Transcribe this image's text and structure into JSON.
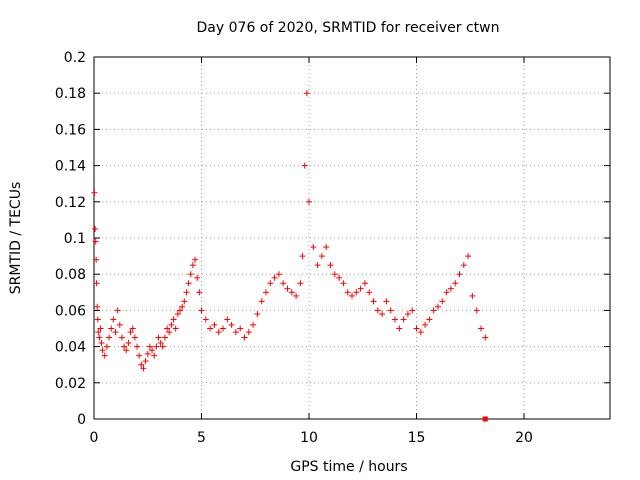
{
  "chart_data": {
    "type": "scatter",
    "title": "Day 076 of 2020, SRMTID for receiver ctwn",
    "xlabel": "GPS time / hours",
    "ylabel": "SRMTID / TECUs",
    "xlim": [
      0,
      24
    ],
    "ylim": [
      0,
      0.2
    ],
    "grid": true,
    "xticks": [
      0,
      5,
      10,
      15,
      20
    ],
    "xtick_labels": [
      "0",
      "5",
      "10",
      "15",
      "20"
    ],
    "yticks": [
      0,
      0.02,
      0.04,
      0.06,
      0.08,
      0.1,
      0.12,
      0.14,
      0.16,
      0.18,
      0.2
    ],
    "ytick_labels": [
      "0",
      "0.02",
      "0.04",
      "0.06",
      "0.08",
      "0.1",
      "0.12",
      "0.14",
      "0.16",
      "0.18",
      "0.2"
    ],
    "marker": "+",
    "color": "#ff0000",
    "series": [
      {
        "name": "SRMTID",
        "x": [
          0.02,
          0.05,
          0.08,
          0.1,
          0.12,
          0.15,
          0.18,
          0.2,
          0.25,
          0.3,
          0.35,
          0.4,
          0.5,
          0.6,
          0.7,
          0.8,
          0.9,
          1.0,
          1.1,
          1.2,
          1.3,
          1.4,
          1.5,
          1.6,
          1.7,
          1.8,
          1.9,
          2.0,
          2.1,
          2.2,
          2.3,
          2.4,
          2.5,
          2.6,
          2.7,
          2.8,
          2.9,
          3.0,
          3.1,
          3.2,
          3.3,
          3.4,
          3.5,
          3.6,
          3.7,
          3.8,
          3.9,
          4.0,
          4.1,
          4.2,
          4.3,
          4.4,
          4.5,
          4.6,
          4.7,
          4.8,
          4.9,
          5.0,
          5.2,
          5.4,
          5.6,
          5.8,
          6.0,
          6.2,
          6.4,
          6.6,
          6.8,
          7.0,
          7.2,
          7.4,
          7.6,
          7.8,
          8.0,
          8.2,
          8.4,
          8.6,
          8.8,
          9.0,
          9.2,
          9.4,
          9.6,
          9.7,
          9.8,
          9.9,
          10.0,
          10.2,
          10.4,
          10.6,
          10.8,
          11.0,
          11.2,
          11.4,
          11.6,
          11.8,
          12.0,
          12.2,
          12.4,
          12.6,
          12.8,
          13.0,
          13.2,
          13.4,
          13.6,
          13.8,
          14.0,
          14.2,
          14.4,
          14.6,
          14.8,
          15.0,
          15.2,
          15.4,
          15.6,
          15.8,
          16.0,
          16.2,
          16.4,
          16.6,
          16.8,
          17.0,
          17.2,
          17.4,
          17.6,
          17.8,
          18.0,
          18.2
        ],
        "y": [
          0.125,
          0.105,
          0.098,
          0.088,
          0.075,
          0.062,
          0.055,
          0.048,
          0.045,
          0.05,
          0.042,
          0.038,
          0.035,
          0.04,
          0.045,
          0.05,
          0.055,
          0.048,
          0.06,
          0.052,
          0.045,
          0.04,
          0.038,
          0.042,
          0.048,
          0.05,
          0.045,
          0.04,
          0.035,
          0.03,
          0.028,
          0.032,
          0.036,
          0.04,
          0.038,
          0.035,
          0.04,
          0.045,
          0.042,
          0.04,
          0.045,
          0.05,
          0.048,
          0.052,
          0.055,
          0.05,
          0.058,
          0.06,
          0.062,
          0.065,
          0.07,
          0.075,
          0.08,
          0.085,
          0.088,
          0.078,
          0.07,
          0.06,
          0.055,
          0.05,
          0.052,
          0.048,
          0.05,
          0.055,
          0.052,
          0.048,
          0.05,
          0.045,
          0.048,
          0.052,
          0.058,
          0.065,
          0.07,
          0.075,
          0.078,
          0.08,
          0.075,
          0.072,
          0.07,
          0.068,
          0.075,
          0.09,
          0.14,
          0.18,
          0.12,
          0.095,
          0.085,
          0.09,
          0.095,
          0.085,
          0.08,
          0.078,
          0.075,
          0.07,
          0.068,
          0.07,
          0.072,
          0.075,
          0.07,
          0.065,
          0.06,
          0.058,
          0.065,
          0.06,
          0.055,
          0.05,
          0.055,
          0.058,
          0.06,
          0.05,
          0.048,
          0.052,
          0.055,
          0.06,
          0.062,
          0.065,
          0.07,
          0.072,
          0.075,
          0.08,
          0.085,
          0.09,
          0.068,
          0.06,
          0.05,
          0.045
        ]
      }
    ],
    "special_marker": {
      "x": 18.2,
      "y": 0.0
    }
  }
}
